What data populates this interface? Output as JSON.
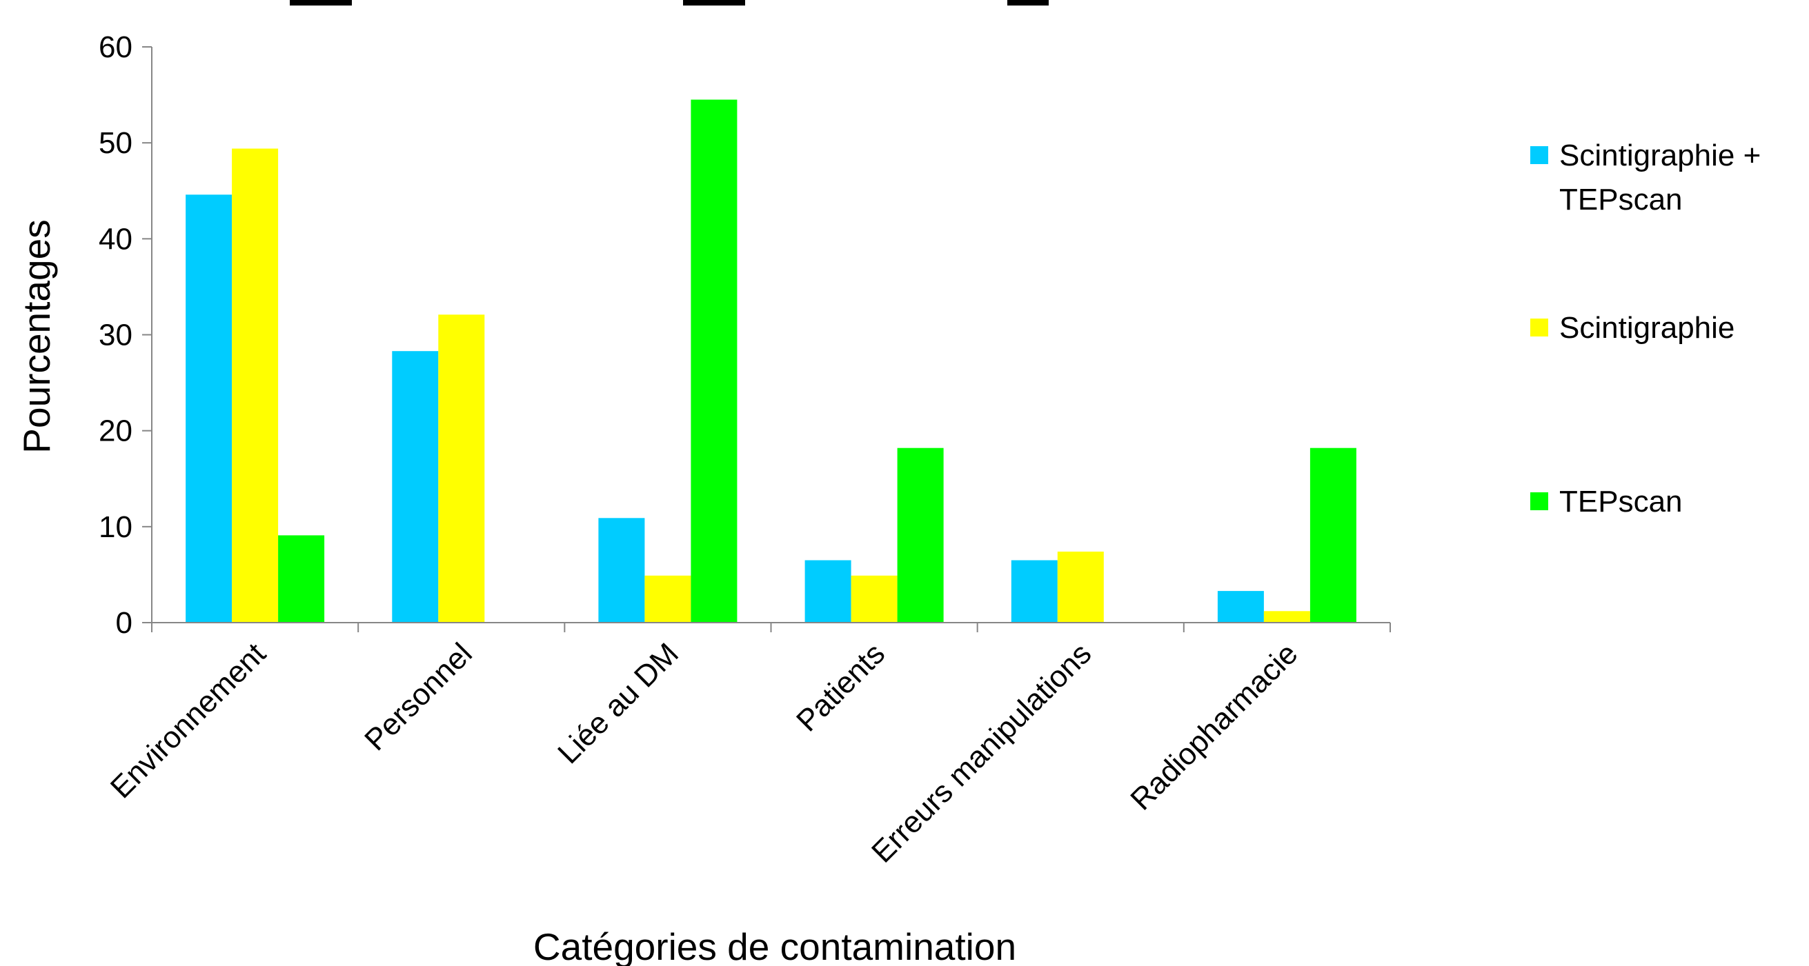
{
  "chart_data": {
    "type": "bar",
    "title": "",
    "xlabel": "Catégories de contamination",
    "ylabel": "Pourcentages",
    "ylim": [
      0,
      60
    ],
    "yticks": [
      0,
      10,
      20,
      30,
      40,
      50,
      60
    ],
    "grid": false,
    "legend_position": "right",
    "categories": [
      "Environnement",
      "Personnel",
      "Liée au DM",
      "Patients",
      "Erreurs manipulations",
      "Radiopharmacie"
    ],
    "series": [
      {
        "name": "Scintigraphie + TEPscan",
        "legend_lines": [
          "Scintigraphie +",
          "TEPscan"
        ],
        "color": "#00CCFF",
        "values": [
          44.6,
          28.3,
          10.9,
          6.5,
          6.5,
          3.3
        ]
      },
      {
        "name": "Scintigraphie",
        "legend_lines": [
          "Scintigraphie"
        ],
        "color": "#FFFF00",
        "values": [
          49.4,
          32.1,
          4.9,
          4.9,
          7.4,
          1.2
        ]
      },
      {
        "name": "TEPscan",
        "legend_lines": [
          "TEPscan"
        ],
        "color": "#00FF00",
        "values": [
          9.1,
          0,
          54.5,
          18.2,
          0,
          18.2
        ]
      }
    ]
  }
}
